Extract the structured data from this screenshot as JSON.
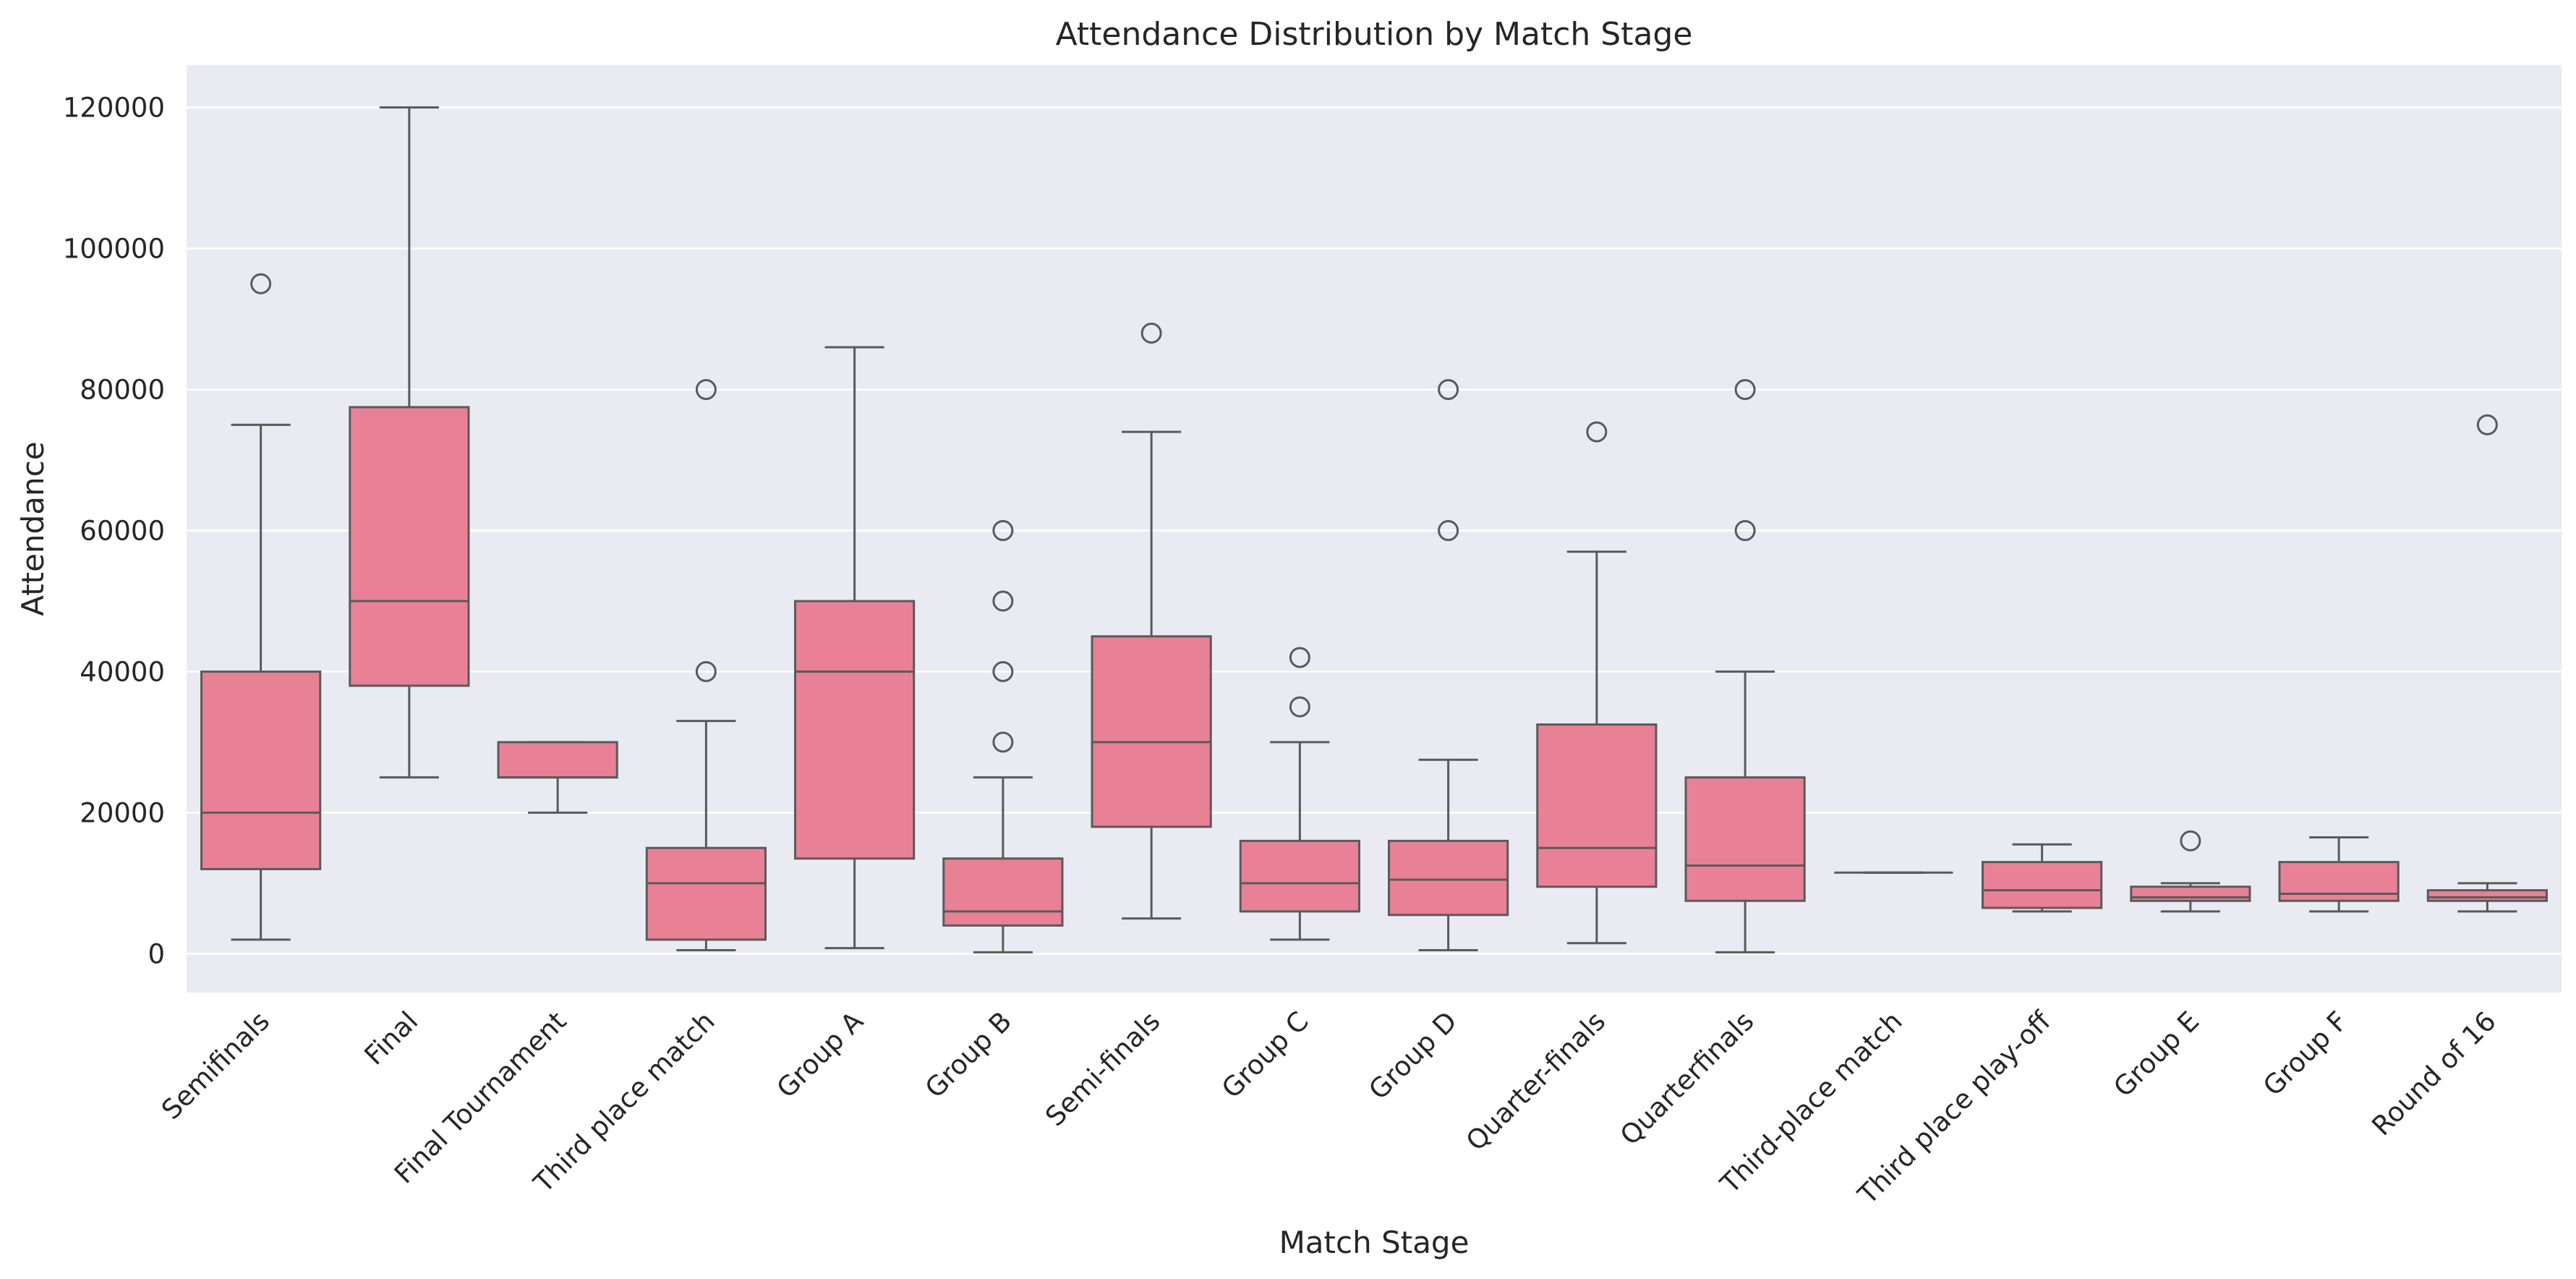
{
  "chart_data": {
    "type": "box",
    "title": "Attendance Distribution by Match Stage",
    "xlabel": "Match Stage",
    "ylabel": "Attendance",
    "ylim": [
      -5500,
      126000
    ],
    "yticks": [
      0,
      20000,
      40000,
      60000,
      80000,
      100000,
      120000
    ],
    "grid": true,
    "colors": {
      "box_fill": "#e88196",
      "line": "#5a5a5a",
      "plot_background": "#eaeaf2",
      "grid": "#ffffff"
    },
    "categories": [
      "Semifinals",
      "Final",
      "Final Tournament",
      "Third place match",
      "Group A",
      "Group B",
      "Semi-finals",
      "Group C",
      "Group D",
      "Quarter-finals",
      "Quarterfinals",
      "Third-place match",
      "Third place play-off",
      "Group E",
      "Group F",
      "Round of 16"
    ],
    "boxes": [
      {
        "category": "Semifinals",
        "whisker_low": 2000,
        "q1": 12000,
        "median": 20000,
        "q3": 40000,
        "whisker_high": 75000,
        "outliers": [
          95000
        ]
      },
      {
        "category": "Final",
        "whisker_low": 25000,
        "q1": 38000,
        "median": 50000,
        "q3": 77500,
        "whisker_high": 120000,
        "outliers": []
      },
      {
        "category": "Final Tournament",
        "whisker_low": 20000,
        "q1": 25000,
        "median": 25000,
        "q3": 30000,
        "whisker_high": 30000,
        "outliers": []
      },
      {
        "category": "Third place match",
        "whisker_low": 500,
        "q1": 2000,
        "median": 10000,
        "q3": 15000,
        "whisker_high": 33000,
        "outliers": [
          40000,
          80000
        ]
      },
      {
        "category": "Group A",
        "whisker_low": 800,
        "q1": 13500,
        "median": 40000,
        "q3": 50000,
        "whisker_high": 86000,
        "outliers": []
      },
      {
        "category": "Group B",
        "whisker_low": 200,
        "q1": 4000,
        "median": 6000,
        "q3": 13500,
        "whisker_high": 25000,
        "outliers": [
          30000,
          40000,
          50000,
          60000
        ]
      },
      {
        "category": "Semi-finals",
        "whisker_low": 5000,
        "q1": 18000,
        "median": 30000,
        "q3": 45000,
        "whisker_high": 74000,
        "outliers": [
          88000
        ]
      },
      {
        "category": "Group C",
        "whisker_low": 2000,
        "q1": 6000,
        "median": 10000,
        "q3": 16000,
        "whisker_high": 30000,
        "outliers": [
          35000,
          42000
        ]
      },
      {
        "category": "Group D",
        "whisker_low": 500,
        "q1": 5500,
        "median": 10500,
        "q3": 16000,
        "whisker_high": 27500,
        "outliers": [
          60000,
          80000
        ]
      },
      {
        "category": "Quarter-finals",
        "whisker_low": 1500,
        "q1": 9500,
        "median": 15000,
        "q3": 32500,
        "whisker_high": 57000,
        "outliers": [
          74000
        ]
      },
      {
        "category": "Quarterfinals",
        "whisker_low": 200,
        "q1": 7500,
        "median": 12500,
        "q3": 25000,
        "whisker_high": 40000,
        "outliers": [
          60000,
          80000
        ]
      },
      {
        "category": "Third-place match",
        "whisker_low": 11500,
        "q1": 11500,
        "median": 11500,
        "q3": 11500,
        "whisker_high": 11500,
        "outliers": []
      },
      {
        "category": "Third place play-off",
        "whisker_low": 6000,
        "q1": 6500,
        "median": 9000,
        "q3": 13000,
        "whisker_high": 15500,
        "outliers": []
      },
      {
        "category": "Group E",
        "whisker_low": 6000,
        "q1": 7500,
        "median": 8000,
        "q3": 9500,
        "whisker_high": 10000,
        "outliers": [
          16000
        ]
      },
      {
        "category": "Group F",
        "whisker_low": 6000,
        "q1": 7500,
        "median": 8500,
        "q3": 13000,
        "whisker_high": 16500,
        "outliers": []
      },
      {
        "category": "Round of 16",
        "whisker_low": 6000,
        "q1": 7500,
        "median": 8000,
        "q3": 9000,
        "whisker_high": 10000,
        "outliers": [
          75000
        ]
      }
    ]
  }
}
